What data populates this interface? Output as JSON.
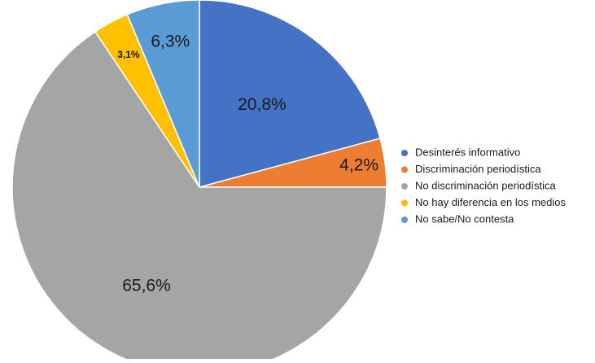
{
  "chart_data": {
    "type": "pie",
    "title": "",
    "start_angle": "12 o'clock",
    "direction": "clockwise",
    "legend_position": "right",
    "slices": [
      {
        "name": "Desinterés informativo",
        "value": 20.8,
        "label": "20,8%",
        "color": "#4472C4"
      },
      {
        "name": "Discriminación periodística",
        "value": 4.2,
        "label": "4,2%",
        "color": "#ED7D31"
      },
      {
        "name": "No discriminación periodística",
        "value": 65.6,
        "label": "65,6%",
        "color": "#A5A5A5"
      },
      {
        "name": "No hay diferencia en los medios",
        "value": 3.1,
        "label": "3,1%",
        "color": "#FFC000"
      },
      {
        "name": "No sabe/No contesta",
        "value": 6.3,
        "label": "6,3%",
        "color": "#5B9BD5"
      }
    ]
  }
}
